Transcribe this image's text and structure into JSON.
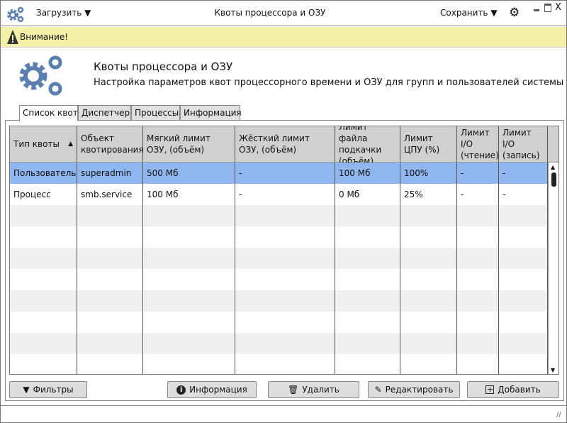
{
  "titlebar": {
    "load": "Загрузить",
    "title": "Квоты процессора и ОЗУ",
    "save": "Сохранить"
  },
  "warning": "Внимание!",
  "banner": {
    "title": "Квоты процессора и ОЗУ",
    "subtitle": "Настройка параметров квот процессорного времени и ОЗУ для групп и пользователей системы"
  },
  "tabs": [
    "Список квот",
    "Диспетчер",
    "Процессы",
    "Информация"
  ],
  "table": {
    "columns": [
      "Тип квоты",
      "Объект квотирования",
      "Мягкий лимит ОЗУ, (объём)",
      "Жёсткий лимит ОЗУ, (объём)",
      "Лимит файла подкачки (объём)",
      "Лимит ЦПУ (%)",
      "Лимит I/O (чтение)",
      "Лимит I/O (запись)"
    ],
    "sort": {
      "column": "Тип квоты",
      "direction": "ascending"
    },
    "rows": [
      [
        "Пользователь",
        "superadmin",
        "500 Мб",
        "-",
        "100 Мб",
        "100%",
        "-",
        "-"
      ],
      [
        "Процесс",
        "smb.service",
        "100 Мб",
        "-",
        "0 Мб",
        "25%",
        "-",
        "-"
      ]
    ],
    "selected_row": 0
  },
  "buttons": {
    "filters": "Фильтры",
    "info": "Информация",
    "delete": "Удалить",
    "edit": "Редактировать",
    "add": "Добавить"
  },
  "colors": {
    "accent": "#5a7fb0",
    "selected": "#8fb6ee",
    "warning_bg": "#f3f0a8"
  }
}
